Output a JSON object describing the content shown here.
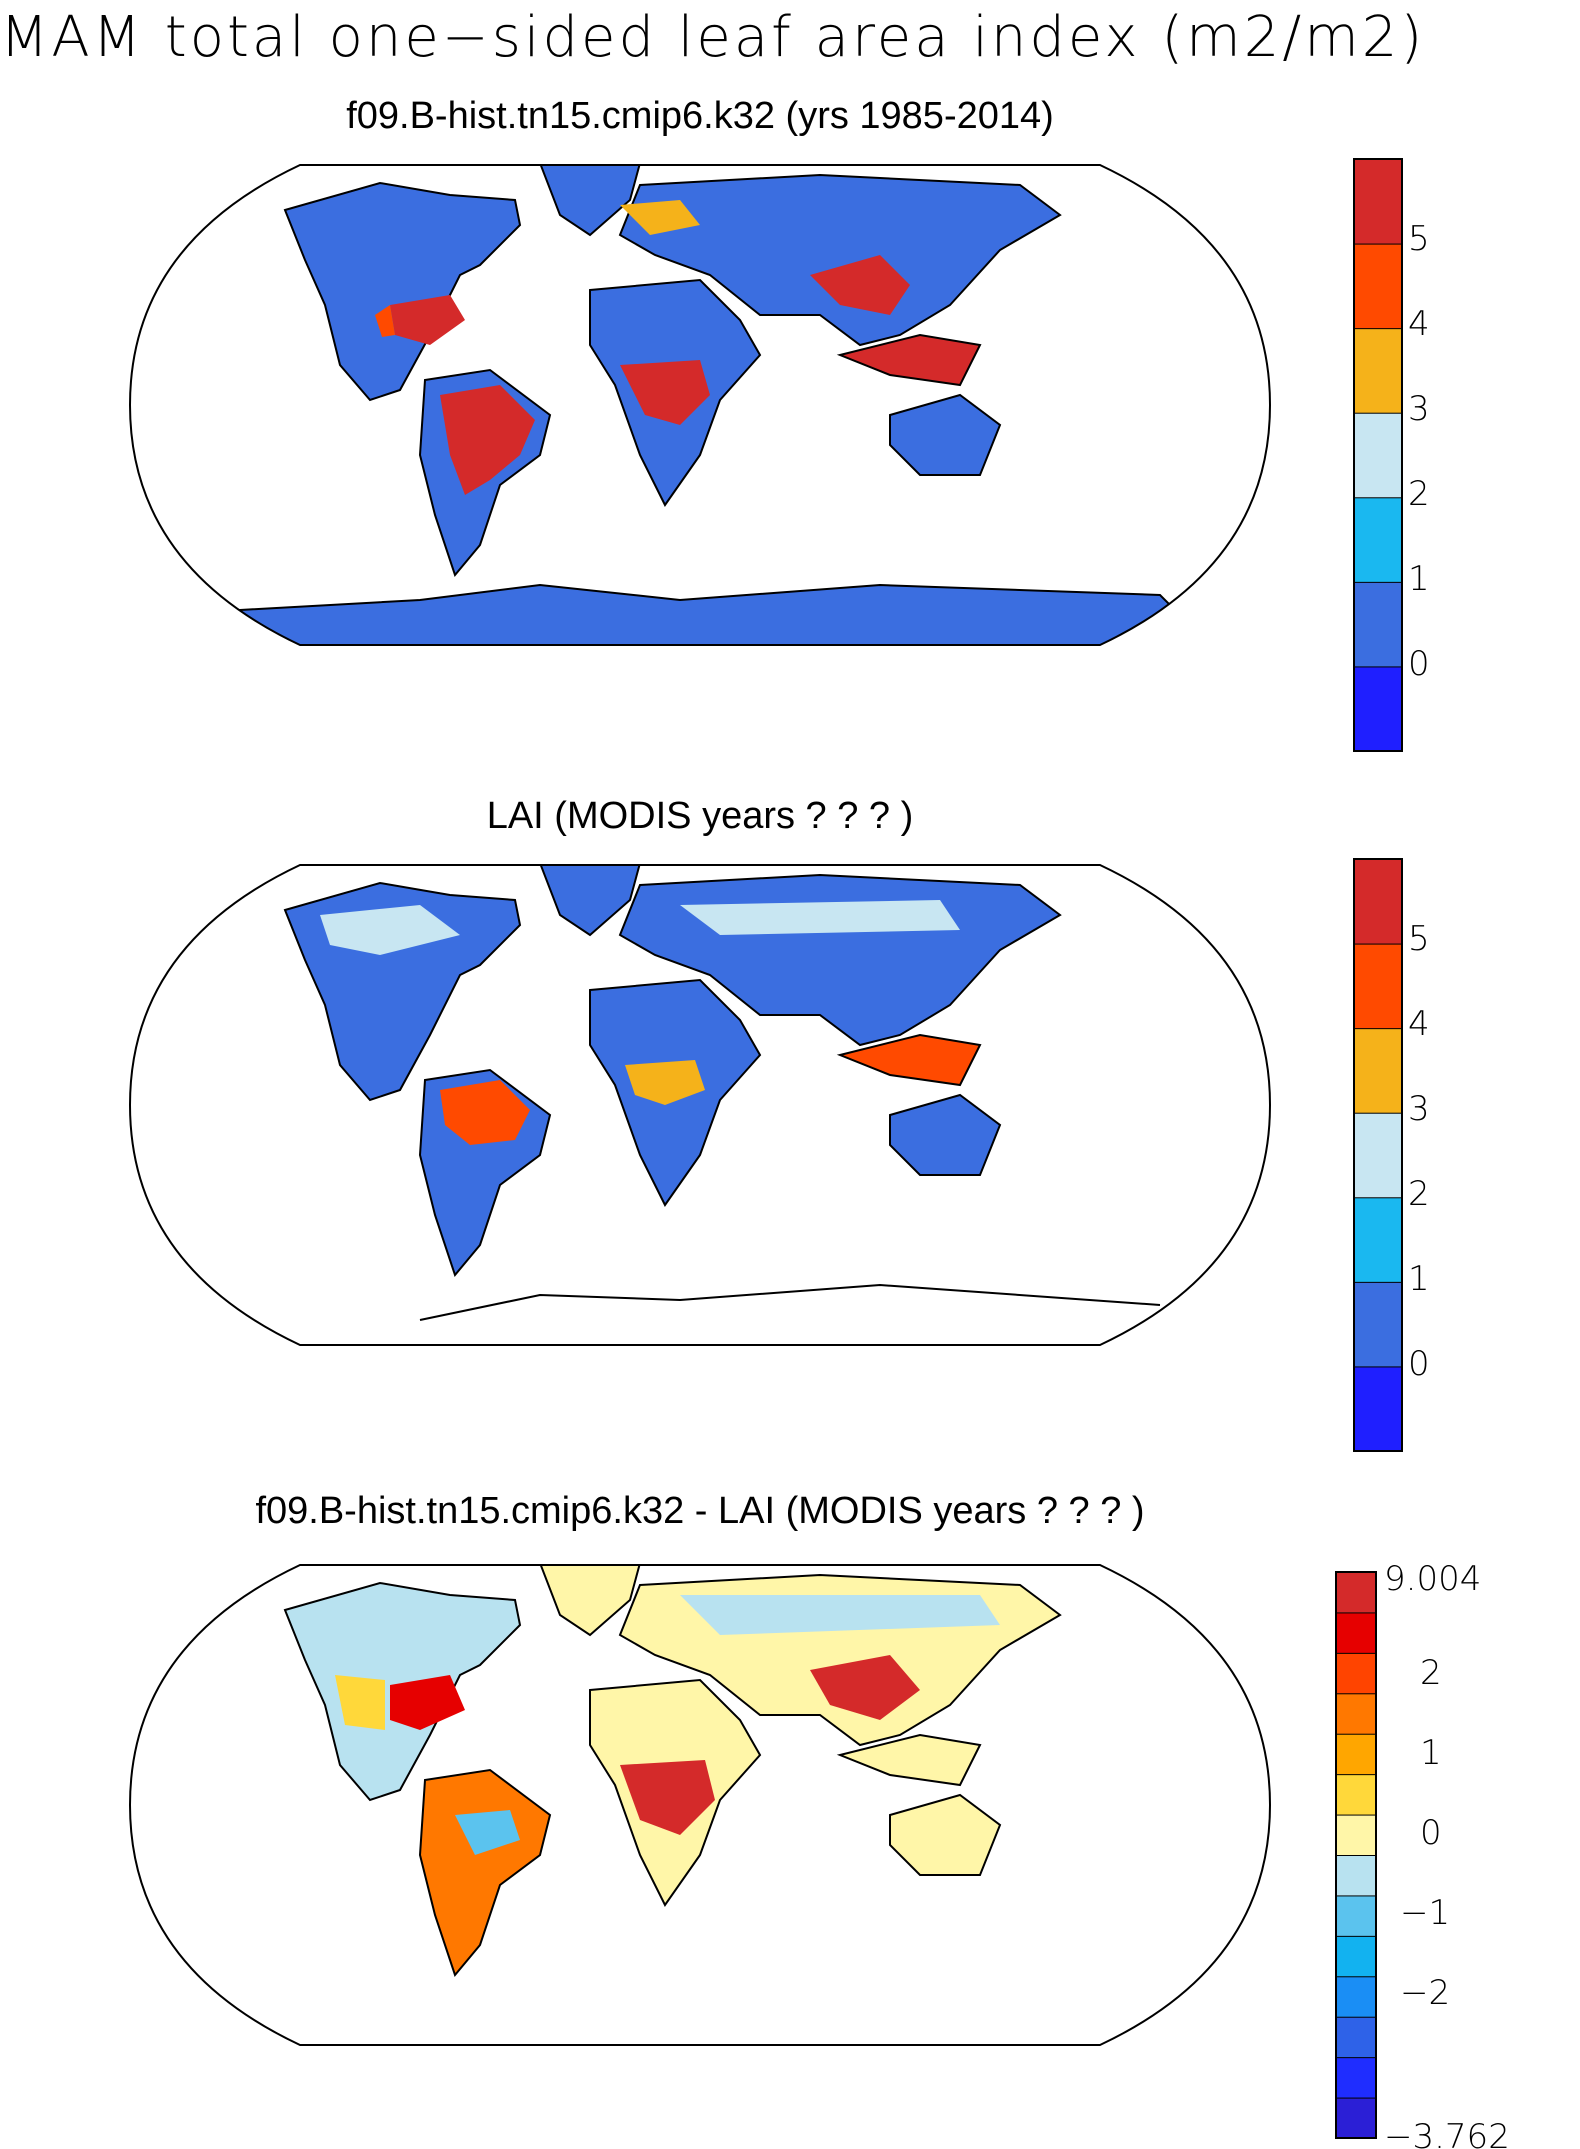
{
  "figure": {
    "title": "MAM total one−sided leaf area index (m2/m2)"
  },
  "panels": [
    {
      "title": "f09.B-hist.tn15.cmip6.k32 (yrs 1985-2014)",
      "colorbar": {
        "labels": [
          "5",
          "4",
          "3",
          "2",
          "1",
          "0"
        ],
        "colors": [
          "#1f1fff",
          "#3b6ee0",
          "#1ab8f0",
          "#c8e6f2",
          "#f5b21a",
          "#ff4a00",
          "#d42a2a"
        ]
      }
    },
    {
      "title": "LAI (MODIS years ? ? ? )",
      "colorbar": {
        "labels": [
          "5",
          "4",
          "3",
          "2",
          "1",
          "0"
        ],
        "colors": [
          "#1f1fff",
          "#3b6ee0",
          "#1ab8f0",
          "#c8e6f2",
          "#f5b21a",
          "#ff4a00",
          "#d42a2a"
        ]
      }
    },
    {
      "title": "f09.B-hist.tn15.cmip6.k32 - LAI (MODIS years ? ? ? )",
      "colorbar": {
        "labels": [
          "9.004",
          "2",
          "1",
          "0",
          "−1",
          "−2",
          "−3.762"
        ],
        "colors": [
          "#2b1fd6",
          "#1f2dff",
          "#2e62e8",
          "#1a8ef5",
          "#12b2f0",
          "#5bc3ee",
          "#b8e2f0",
          "#fff6a8",
          "#ffd83a",
          "#ffa600",
          "#ff7800",
          "#ff4400",
          "#e60000",
          "#d42a2a"
        ]
      }
    }
  ]
}
